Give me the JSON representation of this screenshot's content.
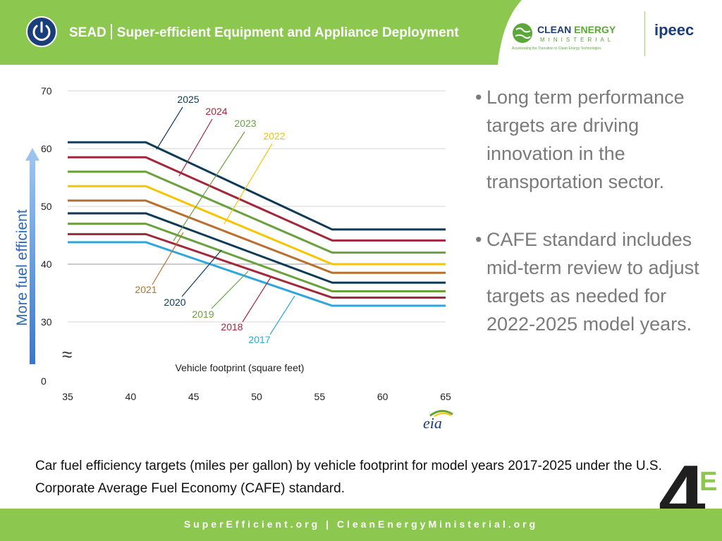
{
  "header": {
    "brand_short": "SEAD",
    "brand_long": "Super-efficient Equipment and Appliance Deployment",
    "cem_line1_a": "CLEAN",
    "cem_line1_b": "ENERGY",
    "cem_line2": "MINISTERIAL",
    "cem_line3": "Accelerating the Transition to Clean Energy Technologies",
    "partner_logo": "ipeec",
    "colors": {
      "green": "#8cc74f",
      "navy": "#1a3d7c"
    }
  },
  "chart_data": {
    "type": "line",
    "xlabel": "Vehicle footprint  (square feet)",
    "ylabel": "More fuel efficient",
    "x_ticks": [
      35,
      40,
      45,
      50,
      55,
      60,
      65
    ],
    "y_ticks": [
      0,
      30,
      40,
      50,
      60,
      70
    ],
    "xlim": [
      35,
      65
    ],
    "ylim": [
      0,
      70
    ],
    "axis_break": "≈",
    "grid": true,
    "source_logo": "eia",
    "x": [
      35,
      41.2,
      56,
      65
    ],
    "series": [
      {
        "name": "2025",
        "color": "#0d3a56",
        "values": [
          61.1,
          61.1,
          46.0,
          46.0
        ]
      },
      {
        "name": "2024",
        "color": "#a3263a",
        "values": [
          58.5,
          58.5,
          44.1,
          44.1
        ]
      },
      {
        "name": "2023",
        "color": "#6aa13f",
        "values": [
          56.0,
          56.0,
          42.0,
          42.0
        ]
      },
      {
        "name": "2022",
        "color": "#f6c500",
        "values": [
          53.5,
          53.5,
          40.0,
          40.0
        ]
      },
      {
        "name": "2021",
        "color": "#b9702e",
        "values": [
          51.0,
          51.0,
          38.5,
          38.5
        ]
      },
      {
        "name": "2020",
        "color": "#0d3a56",
        "values": [
          48.8,
          48.8,
          36.8,
          36.8
        ]
      },
      {
        "name": "2019",
        "color": "#6aa13f",
        "values": [
          47.0,
          47.0,
          35.3,
          35.3
        ]
      },
      {
        "name": "2018",
        "color": "#a3263a",
        "values": [
          45.2,
          45.2,
          34.2,
          34.2
        ]
      },
      {
        "name": "2017",
        "color": "#2fa7dc",
        "values": [
          43.8,
          43.8,
          32.8,
          32.8
        ]
      }
    ]
  },
  "bullets": [
    "Long term performance targets are driving innovation in the transportation sector.",
    "CAFE standard includes mid-term review to adjust targets as needed for 2022-2025 model years."
  ],
  "bullet_marker": "•",
  "caption": "Car fuel efficiency targets (miles per gallon) by vehicle footprint for model years 2017-2025 under the U.S. Corporate Average Fuel Economy (CAFE) standard.",
  "logo_4e": {
    "digit": "4",
    "letter": "E"
  },
  "footer": {
    "text": "SuperEfficient.org  |  CleanEnergyMinisterial.org"
  }
}
